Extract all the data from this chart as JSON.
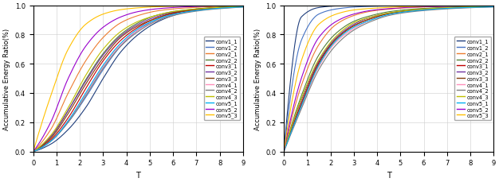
{
  "ylabel": "Accumulative Energy Ratio(%)",
  "xlabel": "T",
  "xlim": [
    0,
    9
  ],
  "ylim": [
    0.0,
    1.0
  ],
  "xticks": [
    0,
    1,
    2,
    3,
    4,
    5,
    6,
    7,
    8,
    9
  ],
  "yticks": [
    0.0,
    0.2,
    0.4,
    0.6,
    0.8,
    1.0
  ],
  "legend_labels": [
    "conv1_1",
    "conv1_2",
    "conv2_1",
    "conv2_2",
    "conv3_1",
    "conv3_2",
    "conv3_3",
    "conv4_1",
    "conv4_2",
    "conv4_3",
    "conv5_1",
    "conv5_2",
    "conv5_3"
  ],
  "colors": [
    "#1f3e7c",
    "#4472c4",
    "#ed7d31",
    "#548235",
    "#c00000",
    "#7030a0",
    "#843c0c",
    "#ff90bb",
    "#808080",
    "#bfbf00",
    "#00b0f0",
    "#9900cc",
    "#ffc000"
  ],
  "left_knots": [
    [
      0,
      0.05,
      0.15,
      0.3,
      0.5,
      0.68,
      0.8,
      0.88,
      0.93,
      0.96,
      0.975,
      0.984,
      0.99
    ],
    [
      0,
      0.07,
      0.2,
      0.37,
      0.56,
      0.72,
      0.83,
      0.9,
      0.94,
      0.97,
      0.981,
      0.988,
      0.993
    ],
    [
      0,
      0.15,
      0.4,
      0.62,
      0.78,
      0.88,
      0.93,
      0.96,
      0.975,
      0.984,
      0.99,
      0.994,
      0.997
    ],
    [
      0,
      0.1,
      0.28,
      0.49,
      0.67,
      0.8,
      0.88,
      0.93,
      0.957,
      0.972,
      0.982,
      0.989,
      0.993
    ],
    [
      0,
      0.08,
      0.23,
      0.43,
      0.62,
      0.76,
      0.85,
      0.91,
      0.945,
      0.965,
      0.978,
      0.986,
      0.991
    ],
    [
      0,
      0.1,
      0.28,
      0.48,
      0.66,
      0.79,
      0.87,
      0.92,
      0.952,
      0.968,
      0.98,
      0.987,
      0.992
    ],
    [
      0,
      0.09,
      0.26,
      0.46,
      0.64,
      0.78,
      0.86,
      0.91,
      0.948,
      0.966,
      0.979,
      0.987,
      0.992
    ],
    [
      0,
      0.07,
      0.21,
      0.39,
      0.58,
      0.73,
      0.83,
      0.89,
      0.934,
      0.957,
      0.972,
      0.982,
      0.989
    ],
    [
      0,
      0.07,
      0.2,
      0.38,
      0.57,
      0.72,
      0.82,
      0.89,
      0.93,
      0.954,
      0.97,
      0.98,
      0.988
    ],
    [
      0,
      0.11,
      0.3,
      0.52,
      0.7,
      0.82,
      0.89,
      0.93,
      0.957,
      0.971,
      0.981,
      0.988,
      0.992
    ],
    [
      0,
      0.07,
      0.21,
      0.4,
      0.59,
      0.74,
      0.84,
      0.9,
      0.937,
      0.959,
      0.973,
      0.983,
      0.989
    ],
    [
      0,
      0.2,
      0.5,
      0.72,
      0.85,
      0.92,
      0.957,
      0.975,
      0.985,
      0.991,
      0.995,
      0.997,
      0.998
    ],
    [
      0,
      0.38,
      0.7,
      0.87,
      0.94,
      0.97,
      0.983,
      0.99,
      0.994,
      0.997,
      0.998,
      0.999,
      0.9995
    ]
  ],
  "right_knots": [
    [
      0,
      0.92,
      0.985,
      0.996,
      0.999,
      0.9995,
      0.9997,
      0.9998,
      0.9999,
      0.99995,
      0.99997,
      0.99998,
      0.99999
    ],
    [
      0,
      0.76,
      0.94,
      0.975,
      0.988,
      0.993,
      0.996,
      0.998,
      0.999,
      0.9995,
      0.9997,
      0.9998,
      0.9999
    ],
    [
      0,
      0.45,
      0.73,
      0.87,
      0.93,
      0.96,
      0.974,
      0.983,
      0.989,
      0.993,
      0.995,
      0.997,
      0.998
    ],
    [
      0,
      0.38,
      0.66,
      0.81,
      0.89,
      0.93,
      0.956,
      0.97,
      0.979,
      0.985,
      0.99,
      0.993,
      0.995
    ],
    [
      0,
      0.33,
      0.61,
      0.77,
      0.86,
      0.91,
      0.944,
      0.961,
      0.972,
      0.98,
      0.985,
      0.989,
      0.992
    ],
    [
      0,
      0.35,
      0.62,
      0.78,
      0.87,
      0.92,
      0.947,
      0.963,
      0.974,
      0.981,
      0.986,
      0.99,
      0.993
    ],
    [
      0,
      0.32,
      0.6,
      0.77,
      0.86,
      0.91,
      0.942,
      0.96,
      0.971,
      0.979,
      0.984,
      0.988,
      0.991
    ],
    [
      0,
      0.3,
      0.58,
      0.75,
      0.84,
      0.9,
      0.936,
      0.955,
      0.967,
      0.976,
      0.982,
      0.986,
      0.99
    ],
    [
      0,
      0.29,
      0.56,
      0.73,
      0.83,
      0.89,
      0.93,
      0.951,
      0.964,
      0.973,
      0.98,
      0.985,
      0.988
    ],
    [
      0,
      0.36,
      0.63,
      0.79,
      0.88,
      0.92,
      0.948,
      0.964,
      0.975,
      0.982,
      0.987,
      0.99,
      0.993
    ],
    [
      0,
      0.31,
      0.59,
      0.76,
      0.85,
      0.9,
      0.937,
      0.956,
      0.968,
      0.977,
      0.983,
      0.987,
      0.99
    ],
    [
      0,
      0.5,
      0.78,
      0.89,
      0.94,
      0.965,
      0.977,
      0.985,
      0.99,
      0.993,
      0.996,
      0.997,
      0.998
    ],
    [
      0,
      0.62,
      0.87,
      0.94,
      0.968,
      0.979,
      0.986,
      0.991,
      0.994,
      0.996,
      0.997,
      0.998,
      0.999
    ]
  ]
}
